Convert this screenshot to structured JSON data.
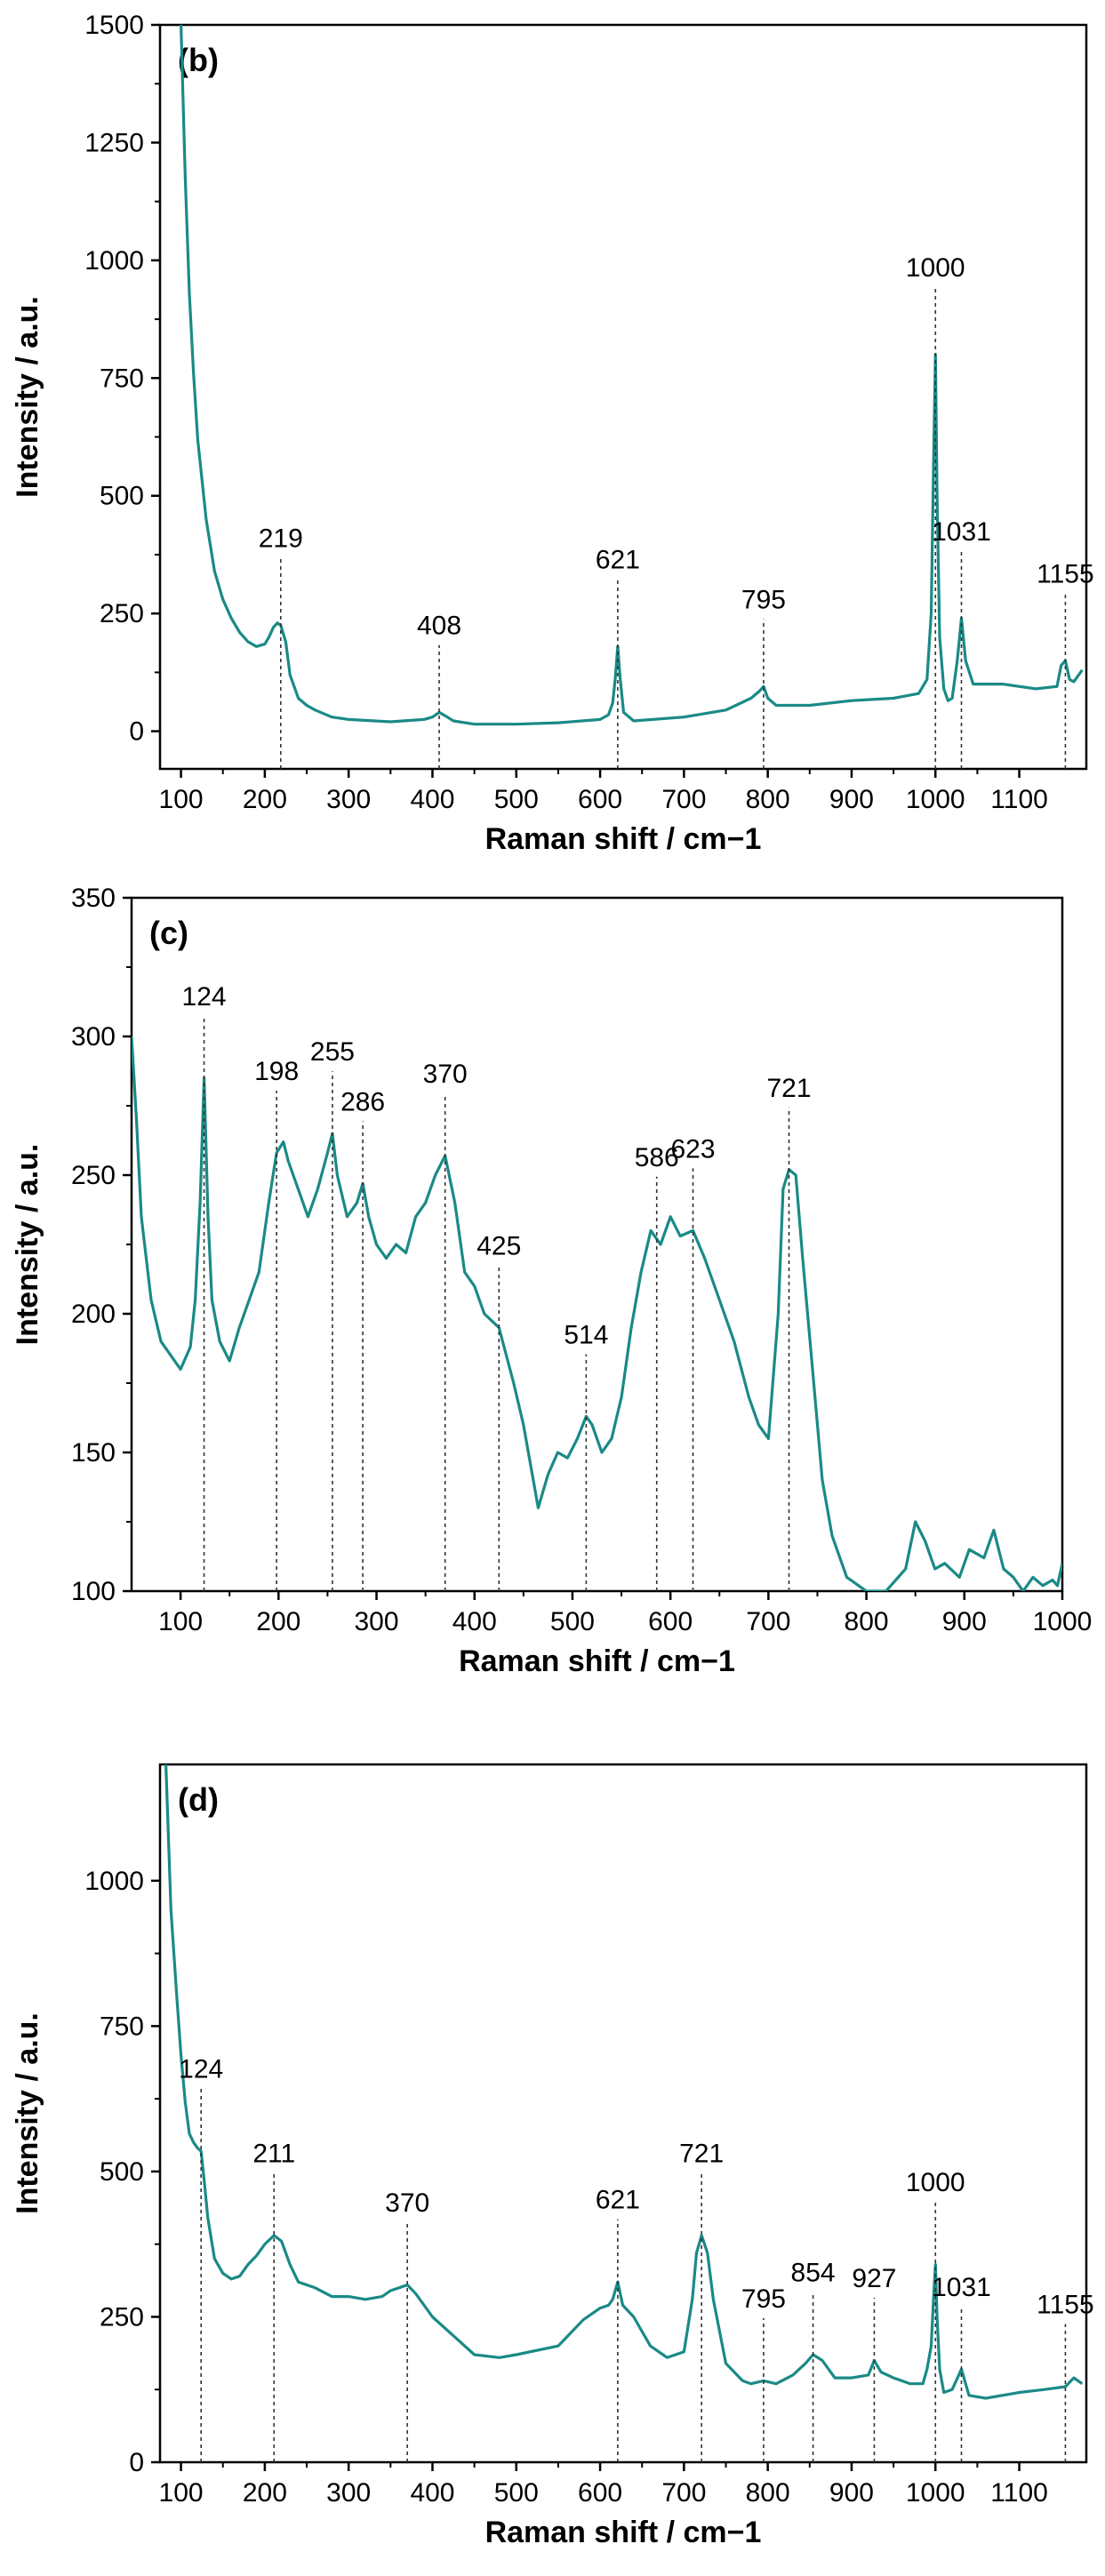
{
  "chart_data": [
    {
      "type": "line",
      "panel_label": "(b)",
      "xlabel": "Raman shift / cm−1",
      "ylabel": "Intensity / a.u.",
      "xlim": [
        75,
        1180
      ],
      "ylim": [
        -80,
        1500
      ],
      "xticks": [
        100,
        200,
        300,
        400,
        500,
        600,
        700,
        800,
        900,
        1000,
        1100
      ],
      "yticks": [
        0,
        250,
        500,
        750,
        1000,
        1250,
        1500
      ],
      "line_color": "#1a8a86",
      "series": [
        {
          "name": "spectrum (b)",
          "x": [
            100,
            105,
            110,
            115,
            120,
            130,
            140,
            150,
            160,
            170,
            180,
            190,
            200,
            205,
            210,
            215,
            219,
            225,
            230,
            240,
            250,
            260,
            280,
            300,
            350,
            390,
            400,
            408,
            416,
            425,
            450,
            500,
            550,
            600,
            610,
            615,
            618,
            621,
            624,
            628,
            640,
            700,
            750,
            780,
            790,
            795,
            800,
            810,
            850,
            900,
            950,
            980,
            990,
            995,
            998,
            1000,
            1002,
            1005,
            1010,
            1015,
            1020,
            1026,
            1031,
            1036,
            1045,
            1080,
            1120,
            1145,
            1150,
            1155,
            1160,
            1165,
            1175
          ],
          "y": [
            1500,
            1180,
            930,
            760,
            620,
            450,
            340,
            280,
            240,
            210,
            190,
            180,
            185,
            200,
            220,
            230,
            225,
            190,
            120,
            70,
            55,
            45,
            30,
            25,
            20,
            25,
            30,
            40,
            32,
            22,
            15,
            15,
            18,
            25,
            35,
            60,
            110,
            180,
            110,
            40,
            22,
            30,
            45,
            70,
            85,
            95,
            70,
            55,
            55,
            65,
            70,
            80,
            110,
            250,
            600,
            800,
            500,
            200,
            90,
            65,
            70,
            150,
            240,
            150,
            100,
            100,
            90,
            95,
            140,
            150,
            110,
            105,
            130
          ]
        }
      ],
      "annotations": [
        {
          "x": 219,
          "label": "219"
        },
        {
          "x": 408,
          "label": "408"
        },
        {
          "x": 621,
          "label": "621"
        },
        {
          "x": 795,
          "label": "795"
        },
        {
          "x": 1000,
          "label": "1000"
        },
        {
          "x": 1031,
          "label": "1031"
        },
        {
          "x": 1155,
          "label": "1155"
        }
      ]
    },
    {
      "type": "line",
      "panel_label": "(c)",
      "xlabel": "Raman shift / cm−1",
      "ylabel": "Intensity / a.u.",
      "xlim": [
        50,
        1000
      ],
      "ylim": [
        100,
        350
      ],
      "xticks": [
        100,
        200,
        300,
        400,
        500,
        600,
        700,
        800,
        900,
        1000
      ],
      "yticks": [
        100,
        150,
        200,
        250,
        300,
        350
      ],
      "line_color": "#1a8a86",
      "series": [
        {
          "name": "spectrum (c)",
          "x": [
            50,
            55,
            60,
            70,
            80,
            90,
            100,
            110,
            115,
            120,
            124,
            128,
            132,
            140,
            150,
            160,
            170,
            180,
            190,
            198,
            205,
            210,
            220,
            230,
            240,
            250,
            255,
            260,
            270,
            280,
            286,
            292,
            300,
            310,
            320,
            330,
            340,
            350,
            360,
            370,
            380,
            390,
            400,
            410,
            425,
            440,
            450,
            460,
            465,
            475,
            485,
            495,
            505,
            514,
            520,
            530,
            540,
            550,
            560,
            570,
            580,
            590,
            600,
            610,
            623,
            635,
            650,
            665,
            680,
            690,
            700,
            710,
            715,
            721,
            728,
            735,
            745,
            755,
            765,
            780,
            800,
            820,
            840,
            850,
            860,
            870,
            880,
            895,
            905,
            920,
            930,
            940,
            950,
            960,
            970,
            980,
            990,
            995,
            1000
          ],
          "y": [
            300,
            270,
            235,
            205,
            190,
            185,
            180,
            188,
            205,
            240,
            285,
            235,
            205,
            190,
            183,
            195,
            205,
            215,
            240,
            258,
            262,
            255,
            245,
            235,
            245,
            258,
            265,
            250,
            235,
            240,
            247,
            235,
            225,
            220,
            225,
            222,
            235,
            240,
            250,
            257,
            240,
            215,
            210,
            200,
            195,
            175,
            160,
            140,
            130,
            142,
            150,
            148,
            155,
            163,
            160,
            150,
            155,
            170,
            195,
            215,
            230,
            225,
            235,
            228,
            230,
            220,
            205,
            190,
            170,
            160,
            155,
            200,
            245,
            252,
            250,
            220,
            180,
            140,
            120,
            105,
            100,
            100,
            108,
            125,
            118,
            108,
            110,
            105,
            115,
            112,
            122,
            108,
            105,
            100,
            105,
            102,
            104,
            102,
            110
          ]
        }
      ],
      "annotations": [
        {
          "x": 124,
          "label": "124"
        },
        {
          "x": 198,
          "label": "198"
        },
        {
          "x": 255,
          "label": "255"
        },
        {
          "x": 286,
          "label": "286"
        },
        {
          "x": 370,
          "label": "370"
        },
        {
          "x": 425,
          "label": "425"
        },
        {
          "x": 514,
          "label": "514"
        },
        {
          "x": 586,
          "label": "586"
        },
        {
          "x": 623,
          "label": "623"
        },
        {
          "x": 721,
          "label": "721"
        }
      ]
    },
    {
      "type": "line",
      "panel_label": "(d)",
      "xlabel": "Raman shift / cm−1",
      "ylabel": "Intensity / a.u.",
      "xlim": [
        75,
        1180
      ],
      "ylim": [
        0,
        1200
      ],
      "xticks": [
        100,
        200,
        300,
        400,
        500,
        600,
        700,
        800,
        900,
        1000,
        1100
      ],
      "yticks": [
        0,
        250,
        500,
        750,
        1000
      ],
      "line_color": "#1a8a86",
      "series": [
        {
          "name": "spectrum (d)",
          "x": [
            82,
            88,
            95,
            100,
            105,
            110,
            115,
            120,
            124,
            128,
            132,
            140,
            150,
            160,
            170,
            180,
            190,
            200,
            211,
            220,
            230,
            240,
            260,
            280,
            300,
            320,
            340,
            350,
            360,
            370,
            380,
            400,
            450,
            480,
            500,
            550,
            580,
            600,
            610,
            615,
            621,
            627,
            640,
            660,
            680,
            700,
            710,
            715,
            721,
            728,
            735,
            750,
            770,
            780,
            795,
            810,
            830,
            845,
            854,
            865,
            880,
            900,
            920,
            927,
            935,
            950,
            970,
            985,
            990,
            995,
            998,
            1000,
            1002,
            1005,
            1010,
            1020,
            1031,
            1040,
            1060,
            1100,
            1130,
            1155,
            1165,
            1175
          ],
          "y": [
            1200,
            950,
            800,
            700,
            620,
            565,
            550,
            540,
            535,
            480,
            420,
            350,
            325,
            315,
            320,
            340,
            355,
            375,
            390,
            380,
            340,
            310,
            300,
            285,
            285,
            280,
            285,
            295,
            300,
            305,
            290,
            250,
            185,
            180,
            185,
            200,
            245,
            265,
            270,
            280,
            310,
            270,
            250,
            200,
            180,
            190,
            280,
            360,
            390,
            360,
            280,
            170,
            140,
            135,
            140,
            135,
            150,
            170,
            185,
            175,
            145,
            145,
            150,
            175,
            155,
            145,
            135,
            135,
            160,
            200,
            290,
            340,
            250,
            160,
            120,
            125,
            160,
            115,
            110,
            120,
            125,
            130,
            145,
            135
          ]
        }
      ],
      "annotations": [
        {
          "x": 124,
          "label": "124"
        },
        {
          "x": 211,
          "label": "211"
        },
        {
          "x": 370,
          "label": "370"
        },
        {
          "x": 621,
          "label": "621"
        },
        {
          "x": 721,
          "label": "721"
        },
        {
          "x": 795,
          "label": "795"
        },
        {
          "x": 854,
          "label": "854"
        },
        {
          "x": 927,
          "label": "927"
        },
        {
          "x": 1000,
          "label": "1000"
        },
        {
          "x": 1031,
          "label": "1031"
        },
        {
          "x": 1155,
          "label": "1155"
        }
      ]
    }
  ]
}
